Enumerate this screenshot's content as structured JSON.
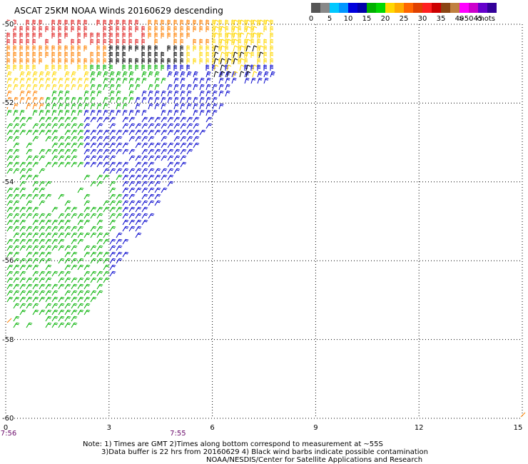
{
  "header": {
    "title": "ASCAT 25KM NOAA Winds 20160629 descending"
  },
  "legend": {
    "colors": [
      "#555555",
      "#888888",
      "#00c8ff",
      "#0096ff",
      "#0000dd",
      "#0000aa",
      "#00b000",
      "#00d800",
      "#ffd700",
      "#ffaa00",
      "#ff6600",
      "#e04000",
      "#ff2020",
      "#cc0000",
      "#8b4513",
      "#c08040",
      "#ff00ff",
      "#cc00cc",
      "#6600cc",
      "#330099"
    ],
    "labels": [
      {
        "text": "0",
        "index": 0
      },
      {
        "text": "5",
        "index": 2
      },
      {
        "text": "10",
        "index": 4
      },
      {
        "text": "15",
        "index": 6
      },
      {
        "text": "20",
        "index": 8
      },
      {
        "text": "25",
        "index": 10
      },
      {
        "text": "30",
        "index": 12
      },
      {
        "text": "35",
        "index": 14
      },
      {
        "text": "40",
        "index": 16
      },
      {
        "text": "45",
        "index": 18
      },
      {
        "text": ">50 knots",
        "index": 20
      }
    ]
  },
  "map": {
    "lat_labels": [
      {
        "text": "-50",
        "value": -50
      },
      {
        "text": "-52",
        "value": -52
      },
      {
        "text": "-54",
        "value": -54
      },
      {
        "text": "-56",
        "value": -56
      },
      {
        "text": "-58",
        "value": -58
      },
      {
        "text": "-60",
        "value": -60
      }
    ],
    "lon_labels": [
      {
        "text": "0",
        "value": 0
      },
      {
        "text": "3",
        "value": 3
      },
      {
        "text": "6",
        "value": 6
      },
      {
        "text": "9",
        "value": 9
      },
      {
        "text": "12",
        "value": 12
      },
      {
        "text": "15",
        "value": 15
      }
    ],
    "time_labels": [
      {
        "text": "7:56",
        "lon": 0
      },
      {
        "text": "7:55",
        "lon": 5
      }
    ],
    "lat_range": [
      -60,
      -50
    ],
    "lon_range": [
      0,
      15
    ],
    "swath_colors": {
      "green": "#00b000",
      "blue": "#0000cc",
      "yellow": "#ffd700",
      "orange": "#ff8000",
      "red": "#e02020",
      "brown": "#8b4513",
      "black": "#000000"
    }
  },
  "notes": {
    "line1": "Note: 1) Times are GMT 2)Times along bottom correspond to measurement at ~55S",
    "line2": "3)Data buffer is 22 hrs from 20160629 4) Black wind barbs indicate possible contamination",
    "line3": "NOAA/NESDIS/Center for Satellite Applications and Research"
  }
}
